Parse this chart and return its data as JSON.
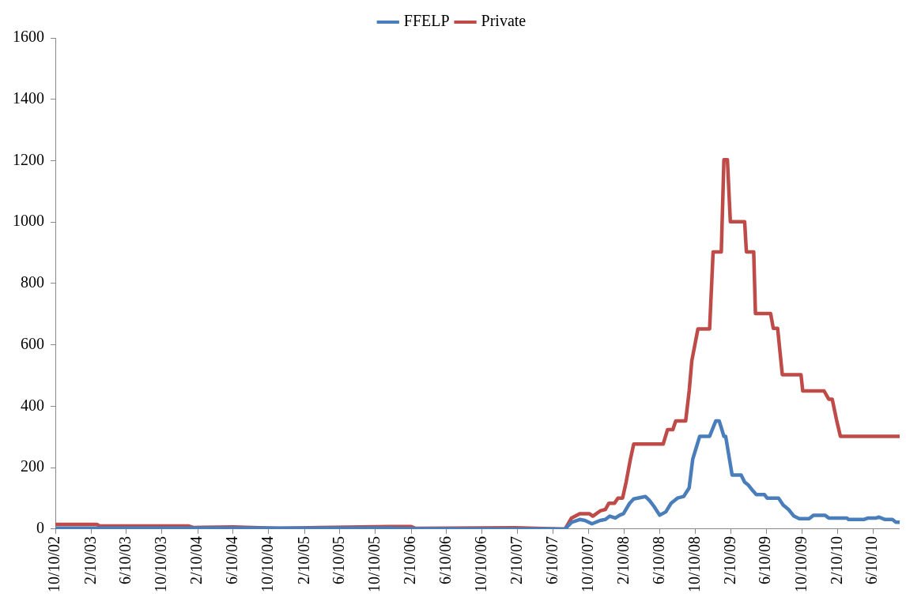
{
  "chart_data": {
    "type": "line",
    "legend": "top",
    "grid": false,
    "marker": "none",
    "line_style": "solid",
    "ylim": [
      0,
      1600
    ],
    "yticks": [
      0,
      200,
      400,
      600,
      800,
      1000,
      1200,
      1400,
      1600
    ],
    "xlim": [
      "2002-10-10",
      "2010-09-10"
    ],
    "xticks": [
      {
        "value": "2002-10-10",
        "label": "10/10/02"
      },
      {
        "value": "2003-02-10",
        "label": "2/10/03"
      },
      {
        "value": "2003-06-10",
        "label": "6/10/03"
      },
      {
        "value": "2003-10-10",
        "label": "10/10/03"
      },
      {
        "value": "2004-02-10",
        "label": "2/10/04"
      },
      {
        "value": "2004-06-10",
        "label": "6/10/04"
      },
      {
        "value": "2004-10-10",
        "label": "10/10/04"
      },
      {
        "value": "2005-02-10",
        "label": "2/10/05"
      },
      {
        "value": "2005-06-10",
        "label": "6/10/05"
      },
      {
        "value": "2005-10-10",
        "label": "10/10/05"
      },
      {
        "value": "2006-02-10",
        "label": "2/10/06"
      },
      {
        "value": "2006-06-10",
        "label": "6/10/06"
      },
      {
        "value": "2006-10-10",
        "label": "10/10/06"
      },
      {
        "value": "2007-02-10",
        "label": "2/10/07"
      },
      {
        "value": "2007-06-10",
        "label": "6/10/07"
      },
      {
        "value": "2007-10-10",
        "label": "10/10/07"
      },
      {
        "value": "2008-02-10",
        "label": "2/10/08"
      },
      {
        "value": "2008-06-10",
        "label": "6/10/08"
      },
      {
        "value": "2008-10-10",
        "label": "10/10/08"
      },
      {
        "value": "2009-02-10",
        "label": "2/10/09"
      },
      {
        "value": "2009-06-10",
        "label": "6/10/09"
      },
      {
        "value": "2009-10-10",
        "label": "10/10/09"
      },
      {
        "value": "2010-02-10",
        "label": "2/10/10"
      },
      {
        "value": "2010-06-10",
        "label": "6/10/10"
      }
    ],
    "series": [
      {
        "name": "FFELP",
        "color": "#4a7ebb",
        "x": [
          "2002-10-10",
          "2004-01-25",
          "2005-11-28",
          "2006-02-25",
          "2007-07-22",
          "2007-08-13",
          "2007-09-10",
          "2007-09-28",
          "2007-10-22",
          "2007-11-19",
          "2007-12-07",
          "2007-12-22",
          "2008-01-10",
          "2008-01-25",
          "2008-02-07",
          "2008-02-28",
          "2008-03-13",
          "2008-04-22",
          "2008-05-07",
          "2008-05-22",
          "2008-06-10",
          "2008-07-01",
          "2008-07-19",
          "2008-08-10",
          "2008-08-31",
          "2008-09-19",
          "2008-10-01",
          "2008-10-25",
          "2008-11-28",
          "2008-12-19",
          "2008-12-31",
          "2009-01-16",
          "2009-01-22",
          "2009-02-13",
          "2009-03-16",
          "2009-03-28",
          "2009-04-10",
          "2009-04-25",
          "2009-05-07",
          "2009-06-04",
          "2009-06-13",
          "2009-07-22",
          "2009-08-07",
          "2009-08-25",
          "2009-09-13",
          "2009-10-01",
          "2009-11-04",
          "2009-11-19",
          "2009-12-28",
          "2010-01-10",
          "2010-03-13",
          "2010-03-19",
          "2010-05-10",
          "2010-05-25",
          "2010-06-22",
          "2010-07-01",
          "2010-07-22",
          "2010-08-16",
          "2010-08-28",
          "2010-09-10"
        ],
        "values": [
          3,
          3,
          3,
          1,
          0,
          22,
          31,
          28,
          17,
          28,
          31,
          42,
          36,
          45,
          50,
          84,
          98,
          106,
          92,
          73,
          45,
          56,
          84,
          101,
          106,
          134,
          227,
          302,
          302,
          352,
          352,
          302,
          302,
          176,
          176,
          153,
          143,
          125,
          112,
          112,
          101,
          101,
          78,
          64,
          42,
          34,
          34,
          45,
          45,
          36,
          36,
          31,
          31,
          36,
          36,
          39,
          31,
          31,
          22,
          22
        ]
      },
      {
        "name": "Private",
        "color": "#be4b48",
        "x": [
          "2002-10-10",
          "2003-03-02",
          "2003-03-10",
          "2004-01-10",
          "2004-01-25",
          "2004-06-10",
          "2004-11-16",
          "2005-03-31",
          "2005-11-28",
          "2006-02-10",
          "2006-02-25",
          "2007-01-31",
          "2007-07-22",
          "2007-08-13",
          "2007-09-10",
          "2007-10-13",
          "2007-10-25",
          "2007-11-19",
          "2007-12-07",
          "2007-12-19",
          "2008-01-07",
          "2008-01-19",
          "2008-02-04",
          "2008-02-16",
          "2008-03-01",
          "2008-03-13",
          "2008-06-22",
          "2008-07-07",
          "2008-07-25",
          "2008-08-04",
          "2008-09-07",
          "2008-09-19",
          "2008-09-28",
          "2008-10-19",
          "2008-11-28",
          "2008-12-10",
          "2009-01-07",
          "2009-01-16",
          "2009-01-28",
          "2009-02-07",
          "2009-03-28",
          "2009-04-03",
          "2009-04-28",
          "2009-05-04",
          "2009-06-25",
          "2009-07-04",
          "2009-07-19",
          "2009-08-04",
          "2009-10-07",
          "2009-10-13",
          "2009-12-25",
          "2010-01-10",
          "2010-01-22",
          "2010-02-07",
          "2010-02-19",
          "2010-09-10"
        ],
        "values": [
          15,
          15,
          10,
          10,
          5,
          7,
          2,
          5,
          8,
          8,
          2,
          4,
          0,
          36,
          50,
          50,
          42,
          59,
          64,
          84,
          84,
          101,
          101,
          153,
          224,
          277,
          277,
          324,
          324,
          352,
          352,
          450,
          548,
          652,
          652,
          903,
          903,
          1203,
          1203,
          1001,
          1001,
          903,
          903,
          702,
          702,
          654,
          654,
          503,
          503,
          450,
          450,
          423,
          423,
          350,
          302,
          302
        ]
      }
    ]
  }
}
